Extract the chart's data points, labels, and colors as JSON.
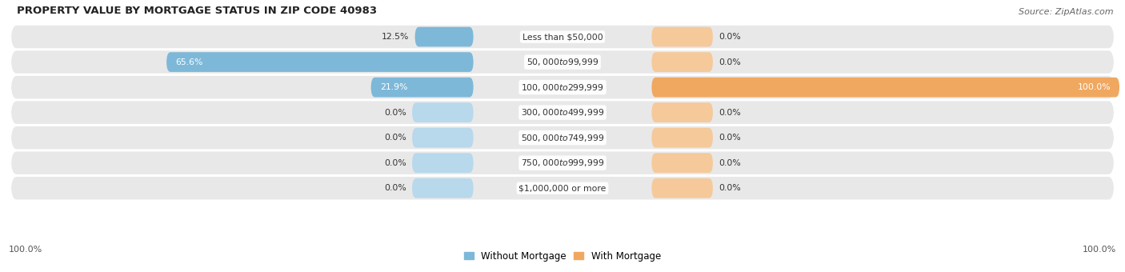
{
  "title": "PROPERTY VALUE BY MORTGAGE STATUS IN ZIP CODE 40983",
  "source": "Source: ZipAtlas.com",
  "categories": [
    "Less than $50,000",
    "$50,000 to $99,999",
    "$100,000 to $299,999",
    "$300,000 to $499,999",
    "$500,000 to $749,999",
    "$750,000 to $999,999",
    "$1,000,000 or more"
  ],
  "without_mortgage": [
    12.5,
    65.6,
    21.9,
    0.0,
    0.0,
    0.0,
    0.0
  ],
  "with_mortgage": [
    0.0,
    0.0,
    100.0,
    0.0,
    0.0,
    0.0,
    0.0
  ],
  "color_without": "#7EB8D8",
  "color_with": "#F0A860",
  "color_without_light": "#B8D8EC",
  "color_with_light": "#F5C99A",
  "bg_row_color": "#E8E8E8",
  "title_color": "#222222",
  "source_color": "#666666",
  "legend_label_without": "Without Mortgage",
  "legend_label_with": "With Mortgage",
  "left_axis_label": "100.0%",
  "right_axis_label": "100.0%"
}
